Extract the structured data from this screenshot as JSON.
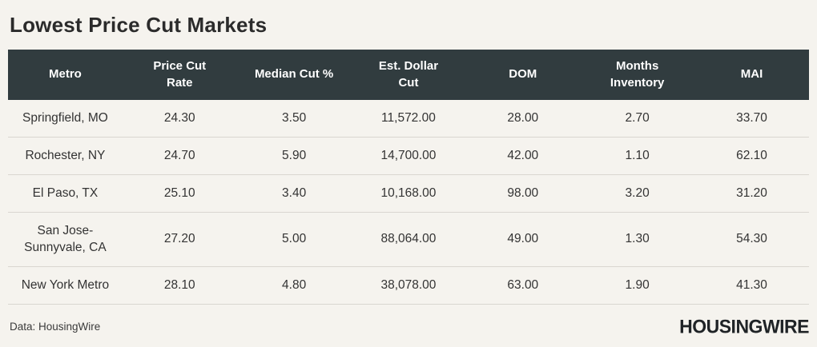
{
  "title": "Lowest Price Cut Markets",
  "source_note": "Data: HousingWire",
  "brand": {
    "logo_text": "HOUSINGWIRE"
  },
  "colors": {
    "page_background": "#f5f3ee",
    "header_background": "#313c3f",
    "header_text": "#ffffff",
    "body_text": "#333333",
    "divider": "#d9d6d0",
    "title_text": "#2b2b2b",
    "logo_text": "#1f2326"
  },
  "table": {
    "headers": [
      "Metro",
      "Price Cut\nRate",
      "Median Cut %",
      "Est. Dollar\nCut",
      "DOM",
      "Months\nInventory",
      "MAI"
    ],
    "rows": [
      {
        "cells": [
          "Springfield, MO",
          "24.30",
          "3.50",
          "11,572.00",
          "28.00",
          "2.70",
          "33.70"
        ]
      },
      {
        "cells": [
          "Rochester, NY",
          "24.70",
          "5.90",
          "14,700.00",
          "42.00",
          "1.10",
          "62.10"
        ]
      },
      {
        "cells": [
          "El Paso, TX",
          "25.10",
          "3.40",
          "10,168.00",
          "98.00",
          "3.20",
          "31.20"
        ]
      },
      {
        "cells": [
          "San Jose-\nSunnyvale, CA",
          "27.20",
          "5.00",
          "88,064.00",
          "49.00",
          "1.30",
          "54.30"
        ]
      },
      {
        "cells": [
          "New York Metro",
          "28.10",
          "4.80",
          "38,078.00",
          "63.00",
          "1.90",
          "41.30"
        ]
      }
    ]
  },
  "chart_data": {
    "type": "table",
    "title": "Lowest Price Cut Markets",
    "columns": [
      "Metro",
      "Price Cut Rate",
      "Median Cut %",
      "Est. Dollar Cut",
      "DOM",
      "Months Inventory",
      "MAI"
    ],
    "rows": [
      [
        "Springfield, MO",
        24.3,
        3.5,
        11572.0,
        28.0,
        2.7,
        33.7
      ],
      [
        "Rochester, NY",
        24.7,
        5.9,
        14700.0,
        42.0,
        1.1,
        62.1
      ],
      [
        "El Paso, TX",
        25.1,
        3.4,
        10168.0,
        98.0,
        3.2,
        31.2
      ],
      [
        "San Jose-Sunnyvale, CA",
        27.2,
        5.0,
        88064.0,
        49.0,
        1.3,
        54.3
      ],
      [
        "New York Metro",
        28.1,
        4.8,
        38078.0,
        63.0,
        1.9,
        41.3
      ]
    ],
    "source": "Data: HousingWire"
  }
}
